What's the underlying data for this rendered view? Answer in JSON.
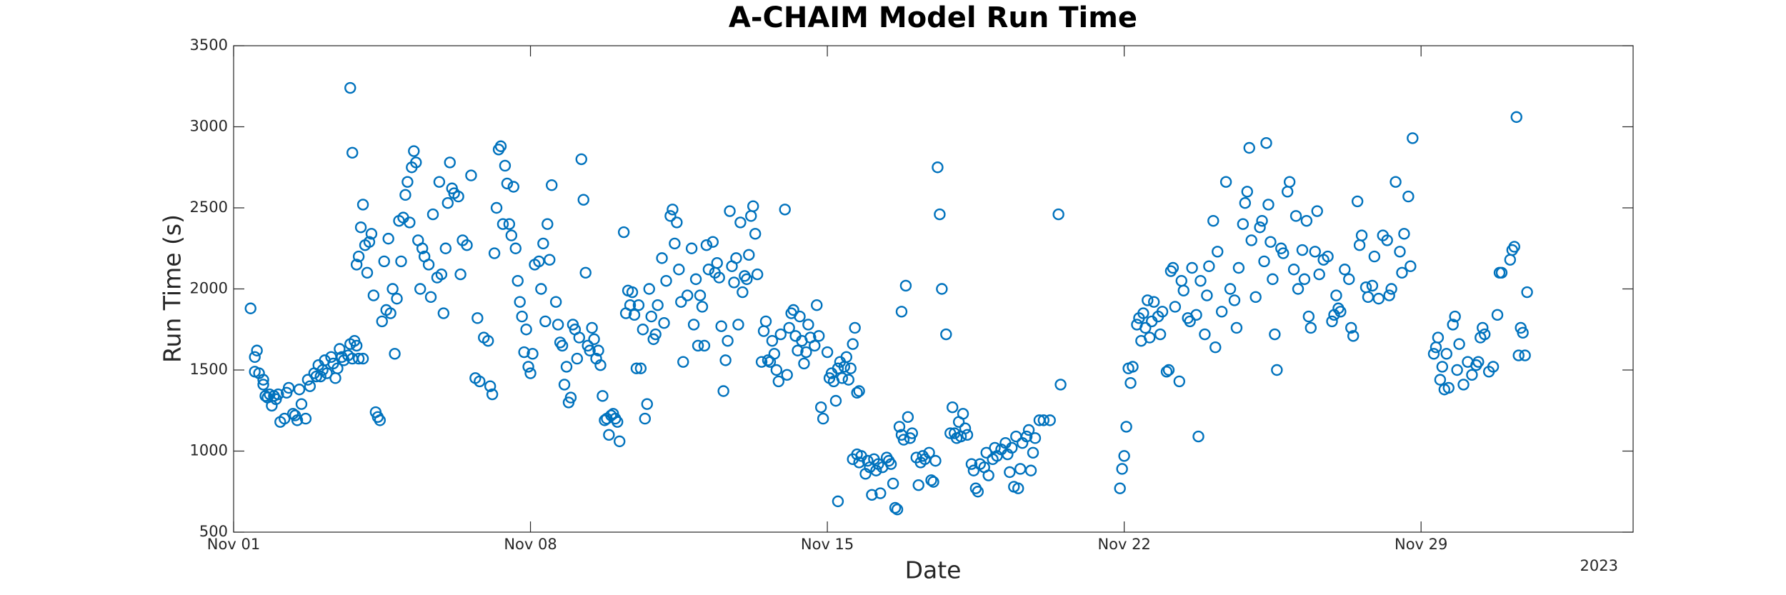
{
  "chart_data": {
    "type": "scatter",
    "title": "A-CHAIM Model Run Time",
    "xlabel": "Date",
    "ylabel": "Run Time (s)",
    "annotation": "2023",
    "color": "#0072BD",
    "xlim": [
      0,
      33
    ],
    "ylim": [
      500,
      3500
    ],
    "xticks": [
      {
        "value": 0,
        "label": "Nov 01"
      },
      {
        "value": 7,
        "label": "Nov 08"
      },
      {
        "value": 14,
        "label": "Nov 15"
      },
      {
        "value": 21,
        "label": "Nov 22"
      },
      {
        "value": 28,
        "label": "Nov 29"
      }
    ],
    "yticks": [
      500,
      1000,
      1500,
      2000,
      2500,
      3000,
      3500
    ],
    "x": [
      0.4,
      0.5,
      0.5,
      0.55,
      0.6,
      0.7,
      0.7,
      0.75,
      0.8,
      0.85,
      0.9,
      0.95,
      1.0,
      1.05,
      1.1,
      1.2,
      1.25,
      1.3,
      1.4,
      1.45,
      1.5,
      1.55,
      1.6,
      1.7,
      1.75,
      1.8,
      1.9,
      1.95,
      2.0,
      2.05,
      2.1,
      2.15,
      2.2,
      2.3,
      2.35,
      2.4,
      2.45,
      2.5,
      2.55,
      2.6,
      2.7,
      2.75,
      2.8,
      2.9,
      2.95,
      3.05,
      2.75,
      2.8,
      2.85,
      2.9,
      2.95,
      3.0,
      3.05,
      3.1,
      3.15,
      3.2,
      3.25,
      3.3,
      3.35,
      3.4,
      3.45,
      3.5,
      3.55,
      3.6,
      3.65,
      3.7,
      3.75,
      3.8,
      3.85,
      3.9,
      3.95,
      4.0,
      4.05,
      4.1,
      4.15,
      4.2,
      4.25,
      4.3,
      4.35,
      4.4,
      4.45,
      4.5,
      4.6,
      4.65,
      4.7,
      4.8,
      4.85,
      4.9,
      4.95,
      5.0,
      5.05,
      5.1,
      5.15,
      5.2,
      5.3,
      5.35,
      5.4,
      5.5,
      5.6,
      5.7,
      5.75,
      5.8,
      5.9,
      6.0,
      6.05,
      6.1,
      6.15,
      6.2,
      6.25,
      6.3,
      6.35,
      6.4,
      6.45,
      6.5,
      6.55,
      6.6,
      6.65,
      6.7,
      6.75,
      6.8,
      6.85,
      6.9,
      6.95,
      7.0,
      7.05,
      7.1,
      7.2,
      7.25,
      7.3,
      7.35,
      7.4,
      7.45,
      7.5,
      7.6,
      7.65,
      7.7,
      7.75,
      7.8,
      7.85,
      7.9,
      7.95,
      8.0,
      8.05,
      8.1,
      8.15,
      8.2,
      8.25,
      8.3,
      8.35,
      8.4,
      8.45,
      8.5,
      8.55,
      8.6,
      8.65,
      8.7,
      8.75,
      8.8,
      8.85,
      8.9,
      8.95,
      9.0,
      9.05,
      9.1,
      9.2,
      9.25,
      9.3,
      9.35,
      9.4,
      9.45,
      9.5,
      9.55,
      9.6,
      9.65,
      9.7,
      9.75,
      9.8,
      9.85,
      9.9,
      9.95,
      10.0,
      10.1,
      10.15,
      10.2,
      10.3,
      10.35,
      10.4,
      10.45,
      10.5,
      10.55,
      10.6,
      10.7,
      10.8,
      10.85,
      10.9,
      10.95,
      11.0,
      11.05,
      11.1,
      11.15,
      11.2,
      11.3,
      11.35,
      11.4,
      11.45,
      11.5,
      11.55,
      11.6,
      11.65,
      11.7,
      11.75,
      11.8,
      11.85,
      11.9,
      11.95,
      12.0,
      12.05,
      12.1,
      12.15,
      12.2,
      12.25,
      12.3,
      12.35,
      12.45,
      12.5,
      12.55,
      12.6,
      12.65,
      12.7,
      12.75,
      12.8,
      12.85,
      12.9,
      13.0,
      13.05,
      13.1,
      13.15,
      13.2,
      13.25,
      13.3,
      13.35,
      13.4,
      13.45,
      13.5,
      13.55,
      13.6,
      13.7,
      13.75,
      13.8,
      13.85,
      13.9,
      14.0,
      14.05,
      14.1,
      14.15,
      14.2,
      14.25,
      14.3,
      14.35,
      14.4,
      14.45,
      14.5,
      14.55,
      14.6,
      14.65,
      14.7,
      14.75,
      14.25,
      14.6,
      14.7,
      14.75,
      14.8,
      14.9,
      14.95,
      15.0,
      15.05,
      15.1,
      15.15,
      15.2,
      15.25,
      15.3,
      15.4,
      15.45,
      15.5,
      15.55,
      15.6,
      15.65,
      15.7,
      15.75,
      15.8,
      15.85,
      15.75,
      15.9,
      15.95,
      16.0,
      16.1,
      16.15,
      16.2,
      16.25,
      16.3,
      16.4,
      16.45,
      16.5,
      16.55,
      16.6,
      16.65,
      16.7,
      16.8,
      16.9,
      16.95,
      17.0,
      17.05,
      17.1,
      17.15,
      17.2,
      17.25,
      17.3,
      17.4,
      17.45,
      17.5,
      17.55,
      17.6,
      17.7,
      17.75,
      17.8,
      17.9,
      17.95,
      18.0,
      18.1,
      18.2,
      18.25,
      18.3,
      18.35,
      18.4,
      18.45,
      18.5,
      18.55,
      18.6,
      18.7,
      18.75,
      18.8,
      18.85,
      18.9,
      19.0,
      19.1,
      19.25,
      19.45,
      19.5,
      20.9,
      20.95,
      21.0,
      21.05,
      21.1,
      21.15,
      21.2,
      21.3,
      21.35,
      21.4,
      21.45,
      21.5,
      21.55,
      21.6,
      21.65,
      21.7,
      21.8,
      21.85,
      21.9,
      22.0,
      22.05,
      22.1,
      22.15,
      22.2,
      22.3,
      22.35,
      22.4,
      22.5,
      22.55,
      22.6,
      22.7,
      22.75,
      22.8,
      22.9,
      22.95,
      23.0,
      23.1,
      23.15,
      23.2,
      23.3,
      23.4,
      23.5,
      23.6,
      23.65,
      23.7,
      23.8,
      23.85,
      23.9,
      23.95,
      24.0,
      24.1,
      24.2,
      24.25,
      24.3,
      24.35,
      24.4,
      24.45,
      24.5,
      24.55,
      24.6,
      24.7,
      24.75,
      24.85,
      24.9,
      25.0,
      25.05,
      25.1,
      25.2,
      25.25,
      25.3,
      25.35,
      25.4,
      25.5,
      25.55,
      25.6,
      25.7,
      25.8,
      25.9,
      25.95,
      26.0,
      26.05,
      26.1,
      26.2,
      26.3,
      26.35,
      26.4,
      26.5,
      26.55,
      26.6,
      26.7,
      26.75,
      26.85,
      26.9,
      27.0,
      27.1,
      27.2,
      27.25,
      27.3,
      27.4,
      27.8,
      27.5,
      27.55,
      27.6,
      27.7,
      27.75,
      28.3,
      28.35,
      28.4,
      28.45,
      28.5,
      28.55,
      28.6,
      28.65,
      28.75,
      28.8,
      28.85,
      28.9,
      29.0,
      29.1,
      29.2,
      29.3,
      29.35,
      29.4,
      29.45,
      29.5,
      29.6,
      29.7,
      29.8,
      29.85,
      29.9,
      30.1,
      30.15,
      30.2,
      30.25,
      30.3,
      30.35,
      30.4,
      30.45,
      30.5
    ],
    "y": [
      1880,
      1490,
      1580,
      1620,
      1480,
      1440,
      1410,
      1340,
      1330,
      1350,
      1280,
      1340,
      1320,
      1350,
      1180,
      1200,
      1360,
      1390,
      1230,
      1220,
      1190,
      1380,
      1290,
      1200,
      1440,
      1400,
      1480,
      1460,
      1530,
      1460,
      1500,
      1560,
      1480,
      1580,
      1540,
      1450,
      1510,
      1630,
      1580,
      1560,
      1590,
      1660,
      1570,
      1650,
      1570,
      1570,
      3240,
      2840,
      1680,
      2150,
      2200,
      2380,
      2520,
      2270,
      2100,
      2290,
      2340,
      1960,
      1240,
      1210,
      1190,
      1800,
      2170,
      1870,
      2310,
      1850,
      2000,
      1600,
      1940,
      2420,
      2170,
      2440,
      2580,
      2660,
      2410,
      2750,
      2850,
      2780,
      2300,
      2000,
      2250,
      2200,
      2150,
      1950,
      2460,
      2070,
      2660,
      2090,
      1850,
      2250,
      2530,
      2780,
      2620,
      2590,
      2570,
      2090,
      2300,
      2270,
      2700,
      1450,
      1820,
      1430,
      1700,
      1680,
      1400,
      1350,
      2220,
      2500,
      2860,
      2880,
      2400,
      2760,
      2650,
      2400,
      2330,
      2630,
      2250,
      2050,
      1920,
      1830,
      1610,
      1750,
      1520,
      1480,
      1600,
      2150,
      2170,
      2000,
      2280,
      1800,
      2400,
      2180,
      2640,
      1920,
      1780,
      1670,
      1650,
      1410,
      1520,
      1300,
      1330,
      1780,
      1750,
      1570,
      1700,
      2800,
      2550,
      2100,
      1650,
      1620,
      1760,
      1690,
      1570,
      1620,
      1530,
      1340,
      1190,
      1200,
      1100,
      1220,
      1230,
      1200,
      1180,
      1060,
      2350,
      1850,
      1990,
      1900,
      1980,
      1840,
      1510,
      1900,
      1510,
      1750,
      1200,
      1290,
      2000,
      1830,
      1690,
      1720,
      1900,
      2190,
      1790,
      2050,
      2450,
      2490,
      2280,
      2410,
      2120,
      1920,
      1550,
      1960,
      2250,
      1780,
      2060,
      1650,
      1960,
      1890,
      1650,
      2270,
      2120,
      2290,
      2100,
      2160,
      2070,
      1770,
      1370,
      1560,
      1680,
      2480,
      2140,
      2040,
      2190,
      1780,
      2410,
      1980,
      2080,
      2060,
      2210,
      2450,
      2510,
      2340,
      2090,
      1550,
      1740,
      1800,
      1560,
      1550,
      1680,
      1600,
      1500,
      1430,
      1720,
      2490,
      1470,
      1760,
      1850,
      1870,
      1710,
      1620,
      1830,
      1680,
      1540,
      1610,
      1780,
      1700,
      1650,
      1900,
      1710,
      1270,
      1200,
      1610,
      1450,
      1480,
      1430,
      1310,
      1510,
      1550,
      1450,
      1520,
      1580,
      1440,
      1510,
      1660,
      1760,
      1360,
      1370,
      690,
      950,
      980,
      930,
      970,
      860,
      940,
      900,
      730,
      950,
      880,
      920,
      740,
      900,
      960,
      940,
      920,
      800,
      650,
      640,
      1150,
      1100,
      1070,
      2020,
      1860,
      1210,
      1080,
      1110,
      960,
      790,
      930,
      970,
      950,
      990,
      820,
      810,
      940,
      2750,
      2460,
      2000,
      1720,
      1110,
      1270,
      1110,
      1080,
      1180,
      1090,
      1230,
      1140,
      1100,
      920,
      880,
      770,
      750,
      920,
      900,
      990,
      850,
      950,
      1020,
      970,
      1010,
      1050,
      980,
      870,
      1020,
      780,
      1090,
      770,
      890,
      1050,
      1090,
      1130,
      880,
      990,
      1080,
      1190,
      1190,
      1190,
      2460,
      1410,
      770,
      890,
      970,
      1150,
      1510,
      1420,
      1520,
      1780,
      1820,
      1680,
      1850,
      1760,
      1930,
      1700,
      1800,
      1920,
      1830,
      1720,
      1860,
      1490,
      1500,
      2110,
      2130,
      1890,
      1430,
      2050,
      1990,
      1820,
      1800,
      2130,
      1840,
      1090,
      2050,
      1720,
      1960,
      2140,
      2420,
      1640,
      2230,
      1860,
      2660,
      2000,
      1930,
      1760,
      2130,
      2400,
      2530,
      2600,
      2870,
      2300,
      1950,
      2380,
      2420,
      2170,
      2900,
      2520,
      2290,
      2060,
      1720,
      1500,
      2250,
      2220,
      2600,
      2660,
      2120,
      2450,
      2000,
      2240,
      2060,
      2420,
      1830,
      1760,
      2230,
      2480,
      2090,
      2180,
      2200,
      1800,
      1840,
      1960,
      1880,
      1860,
      2120,
      2060,
      1760,
      1710,
      2540,
      2270,
      2330,
      2010,
      1950,
      2020,
      2200,
      1940,
      2330,
      2300,
      1960,
      2000,
      2660,
      2930,
      2230,
      2100,
      2340,
      2570,
      2140,
      1600,
      1640,
      1700,
      1440,
      1520,
      1380,
      1600,
      1390,
      1780,
      1830,
      1500,
      1660,
      1410,
      1550,
      1470,
      1530,
      1550,
      1700,
      1760,
      1720,
      1490,
      1520,
      1840,
      2100,
      2100,
      2180,
      2240,
      2260,
      3060,
      1590,
      1760,
      1730,
      1590,
      1980
    ]
  }
}
